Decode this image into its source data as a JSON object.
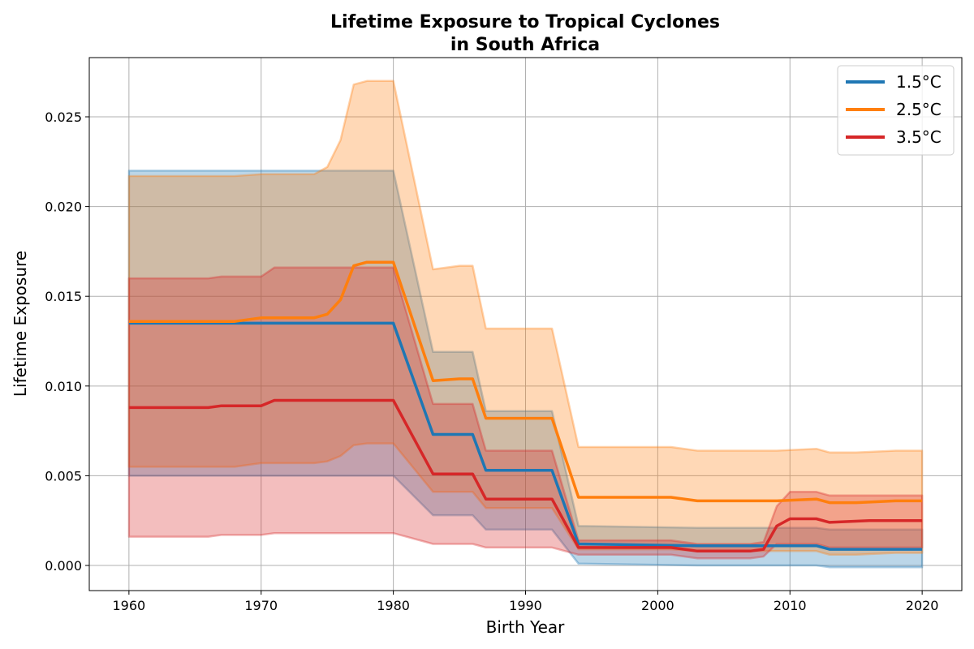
{
  "chart_data": {
    "type": "line",
    "title_line1": "Lifetime Exposure to Tropical Cyclones",
    "title_line2": "in South Africa",
    "xlabel": "Birth Year",
    "ylabel": "Lifetime Exposure",
    "xlim": [
      1957,
      2023
    ],
    "ylim": [
      -0.0014,
      0.0283
    ],
    "x_ticks": [
      1960,
      1970,
      1980,
      1990,
      2000,
      2010,
      2020
    ],
    "y_ticks": [
      0.0,
      0.005,
      0.01,
      0.015,
      0.02,
      0.025
    ],
    "y_tick_labels": [
      "0.000",
      "0.005",
      "0.010",
      "0.015",
      "0.020",
      "0.025"
    ],
    "grid": true,
    "legend_position": "top-right",
    "series": [
      {
        "name": "1.5°C",
        "color": "#1f77b4",
        "x": [
          1960,
          1980,
          1983,
          1986,
          1987,
          1992,
          1994,
          2003,
          2012,
          2013,
          2020
        ],
        "values": [
          0.0135,
          0.0135,
          0.0073,
          0.0073,
          0.0053,
          0.0053,
          0.0012,
          0.0011,
          0.0011,
          0.0009,
          0.0009
        ],
        "upper": [
          0.022,
          0.022,
          0.0119,
          0.0119,
          0.0086,
          0.0086,
          0.0022,
          0.0021,
          0.0021,
          0.002,
          0.002
        ],
        "lower": [
          0.005,
          0.005,
          0.0028,
          0.0028,
          0.002,
          0.002,
          0.0001,
          0.0,
          0.0,
          -0.0001,
          -0.0001
        ]
      },
      {
        "name": "2.5°C",
        "color": "#ff7f0e",
        "x": [
          1960,
          1968,
          1970,
          1974,
          1975,
          1976,
          1977,
          1978,
          1980,
          1983,
          1985,
          1986,
          1987,
          1992,
          1994,
          2001,
          2003,
          2009,
          2012,
          2013,
          2015,
          2018,
          2020
        ],
        "values": [
          0.0136,
          0.0136,
          0.0138,
          0.0138,
          0.014,
          0.0148,
          0.0167,
          0.0169,
          0.0169,
          0.0103,
          0.0104,
          0.0104,
          0.0082,
          0.0082,
          0.0038,
          0.0038,
          0.0036,
          0.0036,
          0.0037,
          0.0035,
          0.0035,
          0.0036,
          0.0036
        ],
        "upper": [
          0.0217,
          0.0217,
          0.0218,
          0.0218,
          0.0222,
          0.0237,
          0.0268,
          0.027,
          0.027,
          0.0165,
          0.0167,
          0.0167,
          0.0132,
          0.0132,
          0.0066,
          0.0066,
          0.0064,
          0.0064,
          0.0065,
          0.0063,
          0.0063,
          0.0064,
          0.0064
        ],
        "lower": [
          0.0055,
          0.0055,
          0.0057,
          0.0057,
          0.0058,
          0.0061,
          0.0067,
          0.0068,
          0.0068,
          0.0041,
          0.0041,
          0.0041,
          0.0032,
          0.0032,
          0.0009,
          0.0009,
          0.0008,
          0.0008,
          0.0008,
          0.0006,
          0.0006,
          0.0007,
          0.0007
        ]
      },
      {
        "name": "3.5°C",
        "color": "#d62728",
        "x": [
          1960,
          1966,
          1967,
          1970,
          1971,
          1980,
          1983,
          1986,
          1987,
          1992,
          1994,
          2001,
          2003,
          2007,
          2008,
          2009,
          2010,
          2012,
          2013,
          2016,
          2020
        ],
        "values": [
          0.0088,
          0.0088,
          0.0089,
          0.0089,
          0.0092,
          0.0092,
          0.0051,
          0.0051,
          0.0037,
          0.0037,
          0.001,
          0.001,
          0.0008,
          0.0008,
          0.0009,
          0.0022,
          0.0026,
          0.0026,
          0.0024,
          0.0025,
          0.0025
        ],
        "upper": [
          0.016,
          0.016,
          0.0161,
          0.0161,
          0.0166,
          0.0166,
          0.009,
          0.009,
          0.0064,
          0.0064,
          0.0014,
          0.0014,
          0.0012,
          0.0012,
          0.0013,
          0.0033,
          0.0041,
          0.0041,
          0.0039,
          0.0039,
          0.0039
        ],
        "lower": [
          0.0016,
          0.0016,
          0.0017,
          0.0017,
          0.0018,
          0.0018,
          0.0012,
          0.0012,
          0.001,
          0.001,
          0.0006,
          0.0006,
          0.0004,
          0.0004,
          0.0005,
          0.0012,
          0.0012,
          0.0012,
          0.001,
          0.001,
          0.001
        ]
      }
    ]
  }
}
